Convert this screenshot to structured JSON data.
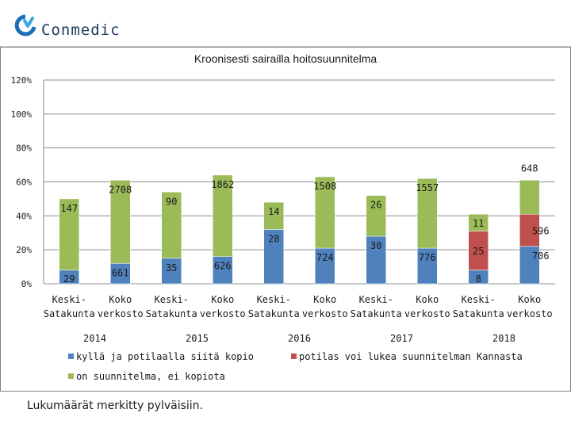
{
  "header": {
    "logo_text": "Conmedic",
    "logo_icon": "conmedic-logo-icon"
  },
  "footnote": "Lukumäärät merkitty pylväisiin.",
  "colors": {
    "kopio": "#4f81bd",
    "kannasta": "#c0504d",
    "ei_kopiota": "#9bbb59"
  },
  "chart_data": {
    "type": "bar",
    "stacked": true,
    "title": "Kroonisesti sairailla  hoitosuunnitelma",
    "xlabel": "",
    "ylabel": "",
    "ylim": [
      0,
      120
    ],
    "yticks": [
      "0%",
      "20%",
      "40%",
      "60%",
      "80%",
      "100%",
      "120%"
    ],
    "grid": true,
    "legend_position": "bottom",
    "groups": [
      "2014",
      "2015",
      "2016",
      "2017",
      "2018"
    ],
    "categories": [
      "Keski-Satakunta",
      "Koko verkosto",
      "Keski-Satakunta",
      "Koko verkosto",
      "Keski-Satakunta",
      "Koko verkosto",
      "Keski-Satakunta",
      "Koko verkosto",
      "Keski-Satakunta",
      "Koko verkosto"
    ],
    "category_lines": [
      [
        "Keski-",
        "Satakunta"
      ],
      [
        "Koko",
        "verkosto"
      ],
      [
        "Keski-",
        "Satakunta"
      ],
      [
        "Koko",
        "verkosto"
      ],
      [
        "Keski-",
        "Satakunta"
      ],
      [
        "Koko",
        "verkosto"
      ],
      [
        "Keski-",
        "Satakunta"
      ],
      [
        "Koko",
        "verkosto"
      ],
      [
        "Keski-",
        "Satakunta"
      ],
      [
        "Koko",
        "verkosto"
      ]
    ],
    "series": [
      {
        "name": "kyllä ja potilaalla siitä kopio",
        "values": [
          8,
          12,
          15,
          16,
          32,
          21,
          28,
          21,
          8,
          22
        ],
        "labels": [
          "29",
          "661",
          "35",
          "626",
          "28",
          "724",
          "30",
          "776",
          "8",
          "706"
        ]
      },
      {
        "name": "potilas voi lukea suunnitelman Kannasta",
        "values": [
          0,
          0,
          0,
          0,
          0,
          0,
          0,
          0,
          23,
          19
        ],
        "labels": [
          "",
          "",
          "",
          "",
          "",
          "",
          "",
          "",
          "25",
          "596"
        ]
      },
      {
        "name": "on suunnitelma, ei kopiota",
        "values": [
          42,
          49,
          39,
          48,
          16,
          42,
          24,
          41,
          10,
          20
        ],
        "labels": [
          "147",
          "2708",
          "90",
          "1862",
          "14",
          "1508",
          "26",
          "1557",
          "11",
          "648"
        ]
      }
    ]
  }
}
